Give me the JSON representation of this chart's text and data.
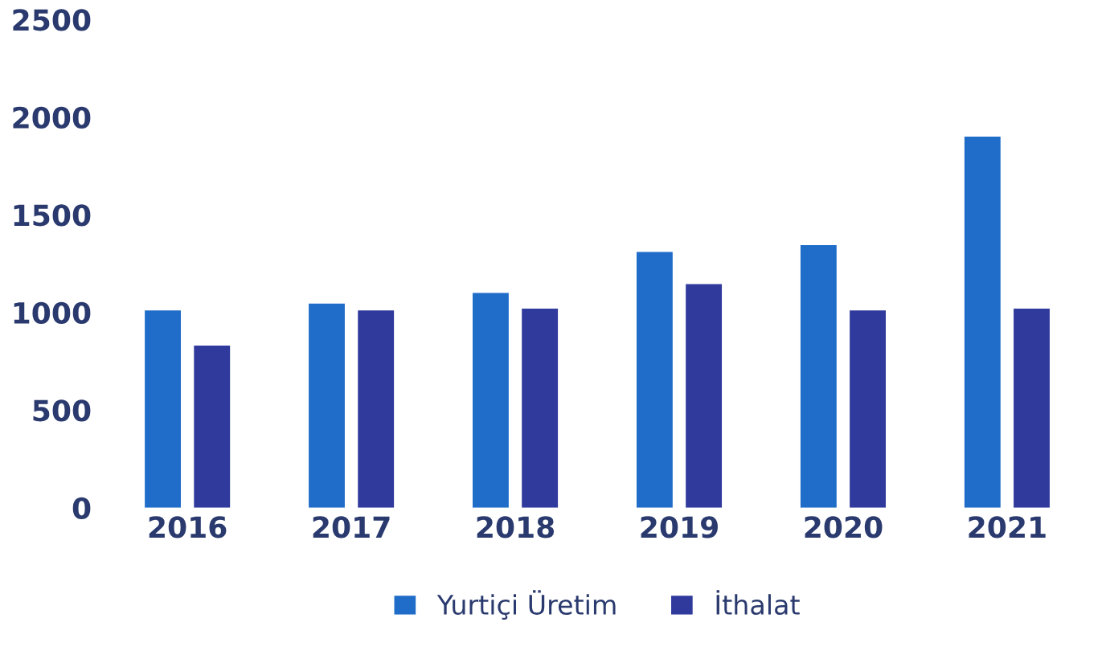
{
  "chart_data": {
    "type": "bar",
    "categories": [
      "2016",
      "2017",
      "2018",
      "2019",
      "2020",
      "2021"
    ],
    "series": [
      {
        "name": "Yurtiçi Üretim",
        "color": "#1f6dc8",
        "values": [
          1010,
          1045,
          1100,
          1310,
          1345,
          1900
        ]
      },
      {
        "name": "İthalat",
        "color": "#2f3a9c",
        "values": [
          830,
          1010,
          1020,
          1145,
          1010,
          1020
        ]
      }
    ],
    "ylim": [
      0,
      2500
    ],
    "yticks": [
      0,
      500,
      1000,
      1500,
      2000,
      2500
    ],
    "grid": false,
    "legend": "bottom"
  }
}
